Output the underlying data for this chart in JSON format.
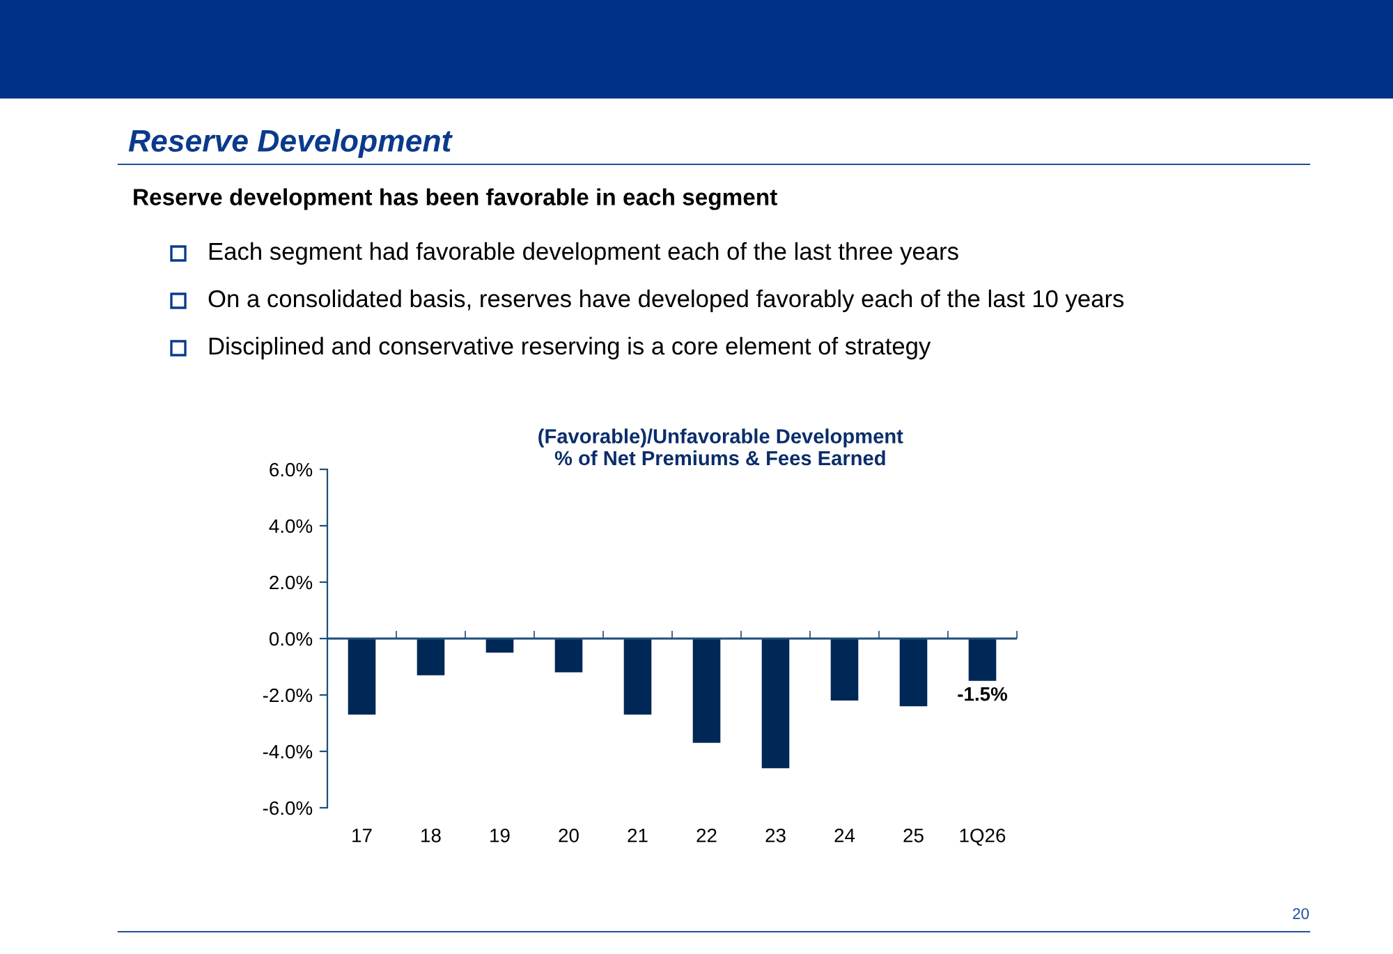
{
  "chart_data": {
    "type": "bar",
    "title": "(Favorable)/Unfavorable Development",
    "subtitle": "% of Net Premiums & Fees Earned",
    "annotations": [
      "Reserve Development",
      "Reserve development has been favorable in each segment",
      "Each segment had favorable development each of the last three years",
      "On a consolidated basis, reserves have developed favorably each of the last 10 years",
      "Disciplined and conservative reserving is a core element of strategy",
      "20"
    ],
    "categories": [
      "17",
      "18",
      "19",
      "20",
      "21",
      "22",
      "23",
      "24",
      "25",
      "1Q26"
    ],
    "values": [
      -2.7,
      -1.3,
      -0.5,
      -1.2,
      -2.7,
      -3.7,
      -4.6,
      -2.2,
      -2.4,
      -1.5
    ],
    "value_labels": [
      null,
      null,
      null,
      null,
      null,
      null,
      null,
      null,
      null,
      "-1.5%"
    ],
    "color": "#002856",
    "ylim": [
      -6,
      6
    ],
    "yticks": [
      {
        "value": -6,
        "label": "-6.0%"
      },
      {
        "value": -4,
        "label": "-4.0%"
      },
      {
        "value": -2,
        "label": "-2.0%"
      },
      {
        "value": 0,
        "label": "0.0%"
      },
      {
        "value": 2,
        "label": "2.0%"
      },
      {
        "value": 4,
        "label": "4.0%"
      },
      {
        "value": 6,
        "label": "6.0%"
      }
    ],
    "ref_lines": [
      {
        "axis": "y",
        "value": 0,
        "color": "#1f4e7a"
      }
    ],
    "grid": false,
    "legend": false
  }
}
